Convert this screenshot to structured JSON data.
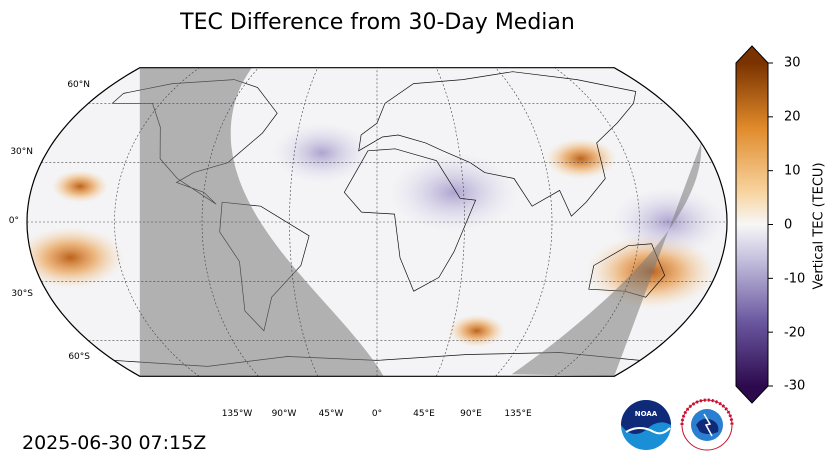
{
  "title": "TEC Difference from 30-Day Median",
  "timestamp": "2025-06-30 07:15Z",
  "map": {
    "projection": "robinson-like",
    "graticule_step_deg": 45,
    "lon_labels": [
      "135°W",
      "90°W",
      "45°W",
      "0°",
      "45°E",
      "90°E",
      "135°E"
    ],
    "lat_labels": [
      "60°N",
      "30°N",
      "0°",
      "30°S",
      "60°S"
    ],
    "night_shading": true
  },
  "colorbar": {
    "label": "Vertical TEC (TECU)",
    "min": -30,
    "max": 30,
    "ticks": [
      "30",
      "20",
      "10",
      "0",
      "-10",
      "-20",
      "-30"
    ],
    "colors": {
      "negative": "#3b0f5a",
      "zero": "#f5f5f5",
      "positive": "#8a3a00"
    }
  },
  "features": {
    "positive_anomalies": [
      {
        "lon": 145,
        "lat": -25,
        "value": 28
      },
      {
        "lon": -160,
        "lat": -18,
        "value": 22
      },
      {
        "lon": 110,
        "lat": 32,
        "value": 12
      },
      {
        "lon": -155,
        "lat": 18,
        "value": 8
      },
      {
        "lon": 60,
        "lat": -55,
        "value": 8
      }
    ],
    "negative_anomalies": [
      {
        "lon": 40,
        "lat": 15,
        "value": -10
      },
      {
        "lon": -30,
        "lat": 35,
        "value": -6
      },
      {
        "lon": 150,
        "lat": 0,
        "value": -8
      }
    ]
  },
  "logos": {
    "left": "noaa-logo",
    "right": "nws-logo"
  }
}
